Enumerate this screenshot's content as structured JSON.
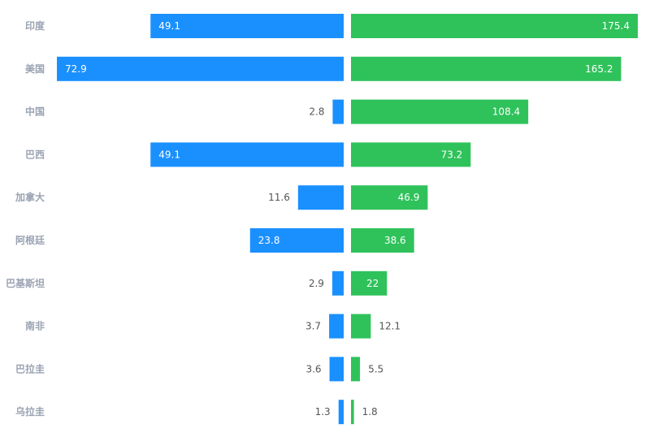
{
  "chart_data": {
    "type": "bar",
    "orientation": "horizontal-bidirectional",
    "categories": [
      "印度",
      "美国",
      "中国",
      "巴西",
      "加拿大",
      "阿根廷",
      "巴基斯坦",
      "南非",
      "巴拉圭",
      "乌拉圭"
    ],
    "series": [
      {
        "name": "left",
        "side": "left",
        "color": "#1a90ff",
        "values": [
          49.1,
          72.9,
          2.8,
          49.1,
          11.6,
          23.8,
          2.9,
          3.7,
          3.6,
          1.3
        ]
      },
      {
        "name": "right",
        "side": "right",
        "color": "#2fc25b",
        "values": [
          175.4,
          165.2,
          108.4,
          73.2,
          46.9,
          38.6,
          22,
          12.1,
          5.5,
          1.8
        ]
      }
    ],
    "left_max": 72.9,
    "right_max": 175.4
  }
}
